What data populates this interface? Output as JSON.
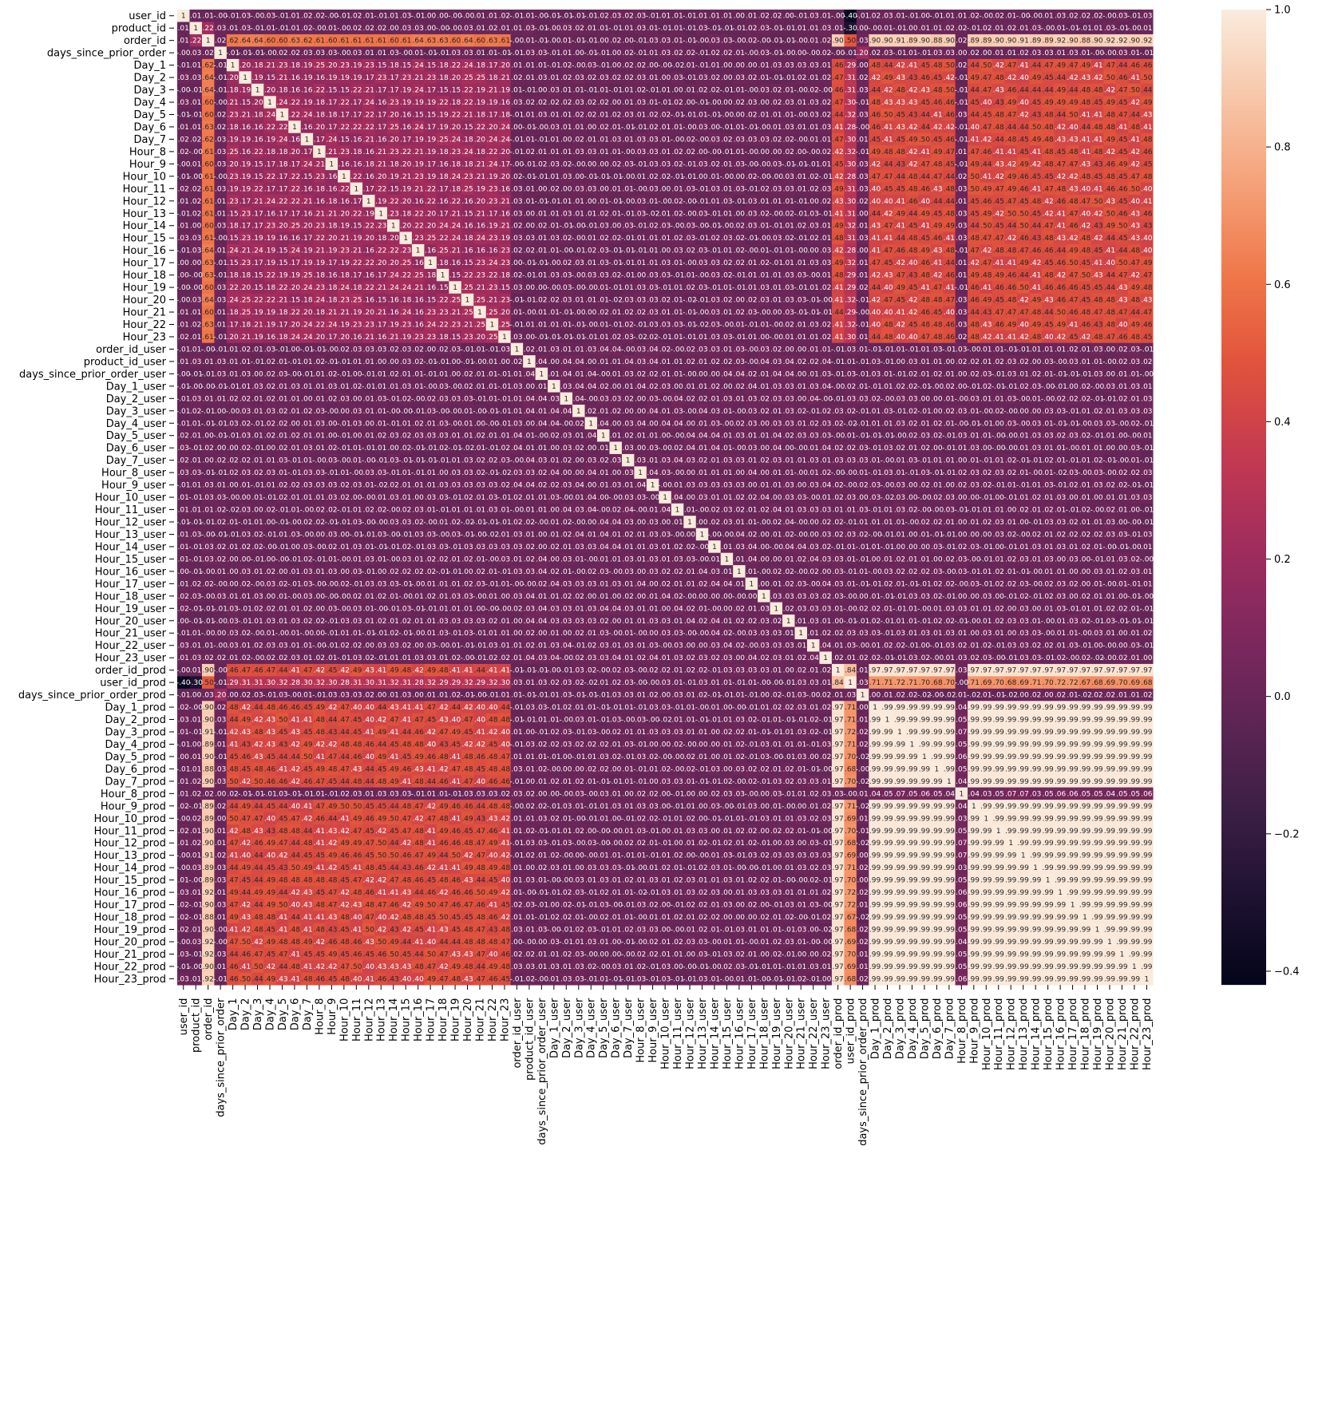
{
  "chart_data": {
    "type": "heatmap",
    "title": "",
    "xlabel": "",
    "ylabel": "",
    "annotated": true,
    "value_range": [
      -0.42,
      1.0
    ],
    "colormap": "rocket",
    "colormap_stops": [
      "#03051a",
      "#1e1231",
      "#3d1f46",
      "#5e2555",
      "#80285e",
      "#a32d5d",
      "#c53a50",
      "#e1533c",
      "#ef7749",
      "#f5a077",
      "#f7c6a8",
      "#faebdd"
    ],
    "labels": [
      "user_id",
      "product_id",
      "order_id",
      "days_since_prior_order",
      "Day_1",
      "Day_2",
      "Day_3",
      "Day_4",
      "Day_5",
      "Day_6",
      "Day_7",
      "Hour_8",
      "Hour_9",
      "Hour_10",
      "Hour_11",
      "Hour_12",
      "Hour_13",
      "Hour_14",
      "Hour_15",
      "Hour_16",
      "Hour_17",
      "Hour_18",
      "Hour_19",
      "Hour_20",
      "Hour_21",
      "Hour_22",
      "Hour_23",
      "order_id_user",
      "product_id_user",
      "days_since_prior_order_user",
      "Day_1_user",
      "Day_2_user",
      "Day_3_user",
      "Day_4_user",
      "Day_5_user",
      "Day_6_user",
      "Day_7_user",
      "Hour_8_user",
      "Hour_9_user",
      "Hour_10_user",
      "Hour_11_user",
      "Hour_12_user",
      "Hour_13_user",
      "Hour_14_user",
      "Hour_15_user",
      "Hour_16_user",
      "Hour_17_user",
      "Hour_18_user",
      "Hour_19_user",
      "Hour_20_user",
      "Hour_21_user",
      "Hour_22_user",
      "Hour_23_user",
      "order_id_prod",
      "user_id_prod",
      "days_since_prior_order_prod",
      "Day_1_prod",
      "Day_2_prod",
      "Day_3_prod",
      "Day_4_prod",
      "Day_5_prod",
      "Day_6_prod",
      "Day_7_prod",
      "Hour_8_prod",
      "Hour_9_prod",
      "Hour_10_prod",
      "Hour_11_prod",
      "Hour_12_prod",
      "Hour_13_prod",
      "Hour_14_prod",
      "Hour_15_prod",
      "Hour_16_prod",
      "Hour_17_prod",
      "Hour_18_prod",
      "Hour_19_prod",
      "Hour_20_prod",
      "Hour_21_prod",
      "Hour_22_prod",
      "Hour_23_prod"
    ],
    "x_tick_labels": [
      "user_id",
      "product_id",
      "order_id",
      "days_since_prior_order",
      "Day_1",
      "Day_2",
      "Day_3",
      "Day_4",
      "Day_5",
      "Day_6",
      "Day_7",
      "Hour_8",
      "Hour_9",
      "Hour_10",
      "Hour_11",
      "Hour_12",
      "Hour_13",
      "Hour_14",
      "Hour_15",
      "Hour_16",
      "Hour_17",
      "Hour_18",
      "Hour_19",
      "Hour_20",
      "Hour_21",
      "Hour_22",
      "Hour_23",
      "order_id_user",
      "product_id_user",
      "days_since_prior_order_user",
      "Day_1_user",
      "Day_2_user",
      "Day_3_user",
      "Day_4_user",
      "Day_5_user",
      "Day_6_user",
      "Day_7_user",
      "Hour_8_user",
      "Hour_9_user",
      "Hour_10_user",
      "Hour_11_user",
      "Hour_12_user",
      "Hour_13_user",
      "Hour_14_user",
      "Hour_15_user",
      "Hour_16_user",
      "Hour_17_user",
      "Hour_18_user",
      "Hour_19_user",
      "Hour_20_user",
      "Hour_21_user",
      "Hour_22_user",
      "Hour_23_user",
      "order_id_prod",
      "user_id_prod",
      "days_since_prior_order_prod",
      "Day_1_prod",
      "Day_2_prod",
      "Day_3_prod",
      "Day_4_prod",
      "Day_5_prod",
      "Day_6_prod",
      "Day_7_prod",
      "Hour_8_prod",
      "Hour_9_prod",
      "Hour_10_prod",
      "Hour_11_prod",
      "Hour_12_prod",
      "Hour_13_prod",
      "Hour_14_prod",
      "Hour_15_prod",
      "Hour_16_prod",
      "Hour_17_prod",
      "Hour_18_prod",
      "Hour_19_prod",
      "Hour_20_prod",
      "Hour_21_prod",
      "Hour_22_prod",
      "Hour_23_prod"
    ],
    "colorbar": {
      "ticks": [
        -0.4,
        -0.2,
        0.0,
        0.2,
        0.4,
        0.6,
        0.8,
        1.0
      ],
      "tick_labels": [
        "−0.4",
        "−0.2",
        "0.0",
        "0.2",
        "0.4",
        "0.6",
        "0.8",
        "1.0"
      ]
    },
    "approximate_values_note": "cell values estimated from colors; block structure",
    "blocks": {
      "diagonal": 1.0,
      "base_background": 0.01,
      "order_id_vs_day_hour": 0.62,
      "order_id_vs_prod_features": 0.9,
      "order_id_prod_vs_user_id_prod": 0.84,
      "prod_day_hour_block": 0.99,
      "prod_block_vs_user_id_prod": 0.7,
      "hour_8_prod_vs_prod_block": 0.05,
      "day_hour_vs_prod_block": 0.45,
      "day_hour_intra": 0.2,
      "user_id_vs_user_id_prod": -0.4,
      "days_since_prior_vs_self_prod": 0.2
    }
  }
}
